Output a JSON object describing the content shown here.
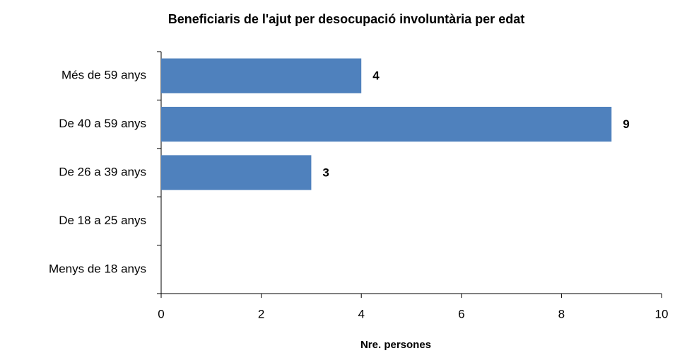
{
  "chart_data": {
    "type": "barh",
    "title": "Beneficiaris de l'ajut per desocupació  involuntària per edat",
    "x_label": "Nre. persones",
    "categories": [
      "Més de 59 anys",
      "De 40 a 59 anys",
      "De 26 a 39 anys",
      "De 18 a 25 anys",
      "Menys de 18 anys"
    ],
    "values": [
      4,
      9,
      3,
      null,
      null
    ],
    "color": "#4f81bd",
    "xlim": [
      0,
      10
    ],
    "xticks": [
      0,
      2,
      4,
      6,
      8,
      10
    ],
    "grid": false
  }
}
